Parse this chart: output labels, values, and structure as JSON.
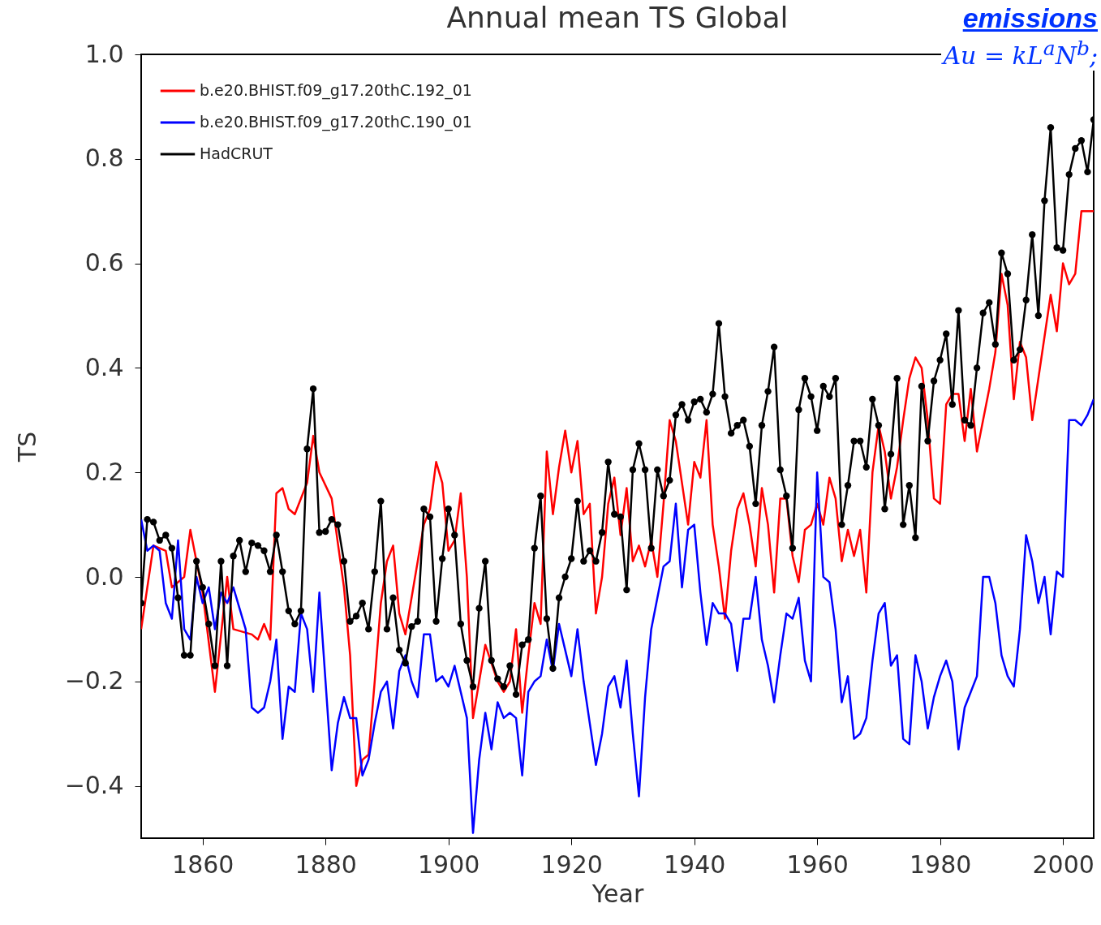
{
  "chart_data": {
    "type": "line",
    "title": "Annual mean TS Global",
    "xlabel": "Year",
    "ylabel": "TS",
    "annotations": [
      "emissions",
      "Au = kL$^{a}$N$^{b}$;"
    ],
    "xlim": [
      1850,
      2005
    ],
    "xticks": [
      1860,
      1880,
      1900,
      1920,
      1940,
      1960,
      1980,
      2000
    ],
    "ylim": [
      -0.5,
      1.0
    ],
    "yticks": [
      {
        "value": -0.4,
        "label": "−0.4"
      },
      {
        "value": -0.2,
        "label": "−0.2"
      },
      {
        "value": 0,
        "label": "0.0"
      },
      {
        "value": 0.2,
        "label": "0.2"
      },
      {
        "value": 0.4,
        "label": "0.4"
      },
      {
        "value": 0.6,
        "label": "0.6"
      },
      {
        "value": 0.8,
        "label": "0.8"
      },
      {
        "value": 1,
        "label": "1.0"
      }
    ],
    "grid": false,
    "legend": "top left",
    "series": [
      {
        "name": "b.e20.BHIST.f09_g17.20thC.192_01",
        "color": "#ff0000",
        "marker": "none",
        "x": [
          1850,
          1852,
          1854,
          1855,
          1857,
          1858,
          1860,
          1862,
          1864,
          1865,
          1868,
          1869,
          1870,
          1871,
          1872,
          1873,
          1874,
          1875,
          1877,
          1878,
          1879,
          1881,
          1883,
          1884,
          1885,
          1886,
          1887,
          1888,
          1889,
          1890,
          1891,
          1892,
          1893,
          1895,
          1896,
          1897,
          1898,
          1899,
          1900,
          1901,
          1902,
          1903,
          1904,
          1905,
          1906,
          1908,
          1909,
          1910,
          1911,
          1912,
          1913,
          1914,
          1915,
          1916,
          1917,
          1918,
          1919,
          1920,
          1921,
          1922,
          1923,
          1924,
          1925,
          1926,
          1927,
          1928,
          1929,
          1930,
          1931,
          1932,
          1933,
          1934,
          1935,
          1936,
          1937,
          1938,
          1939,
          1940,
          1941,
          1942,
          1943,
          1944,
          1945,
          1946,
          1947,
          1948,
          1949,
          1950,
          1951,
          1952,
          1953,
          1954,
          1955,
          1956,
          1957,
          1958,
          1959,
          1960,
          1961,
          1962,
          1963,
          1964,
          1965,
          1966,
          1967,
          1968,
          1969,
          1970,
          1971,
          1972,
          1973,
          1974,
          1975,
          1976,
          1977,
          1978,
          1979,
          1980,
          1981,
          1982,
          1983,
          1984,
          1985,
          1986,
          1987,
          1988,
          1989,
          1990,
          1991,
          1992,
          1993,
          1994,
          1995,
          1996,
          1997,
          1998,
          1999,
          2000,
          2001,
          2002,
          2003,
          2004,
          2005
        ],
        "values": [
          -0.1,
          0.06,
          0.05,
          -0.02,
          0.0,
          0.09,
          -0.03,
          -0.22,
          0.0,
          -0.1,
          -0.11,
          -0.12,
          -0.09,
          -0.12,
          0.16,
          0.17,
          0.13,
          0.12,
          0.18,
          0.27,
          0.2,
          0.15,
          -0.02,
          -0.15,
          -0.4,
          -0.35,
          -0.34,
          -0.2,
          -0.05,
          0.03,
          0.06,
          -0.07,
          -0.11,
          0.03,
          0.1,
          0.13,
          0.22,
          0.18,
          0.05,
          0.07,
          0.16,
          0.0,
          -0.27,
          -0.2,
          -0.13,
          -0.2,
          -0.22,
          -0.2,
          -0.1,
          -0.26,
          -0.15,
          -0.05,
          -0.09,
          0.24,
          0.12,
          0.21,
          0.28,
          0.2,
          0.26,
          0.12,
          0.14,
          -0.07,
          0.0,
          0.14,
          0.19,
          0.08,
          0.17,
          0.03,
          0.06,
          0.02,
          0.07,
          0.0,
          0.14,
          0.3,
          0.26,
          0.18,
          0.1,
          0.22,
          0.19,
          0.3,
          0.1,
          0.02,
          -0.08,
          0.05,
          0.13,
          0.16,
          0.1,
          0.02,
          0.17,
          0.1,
          -0.03,
          0.15,
          0.15,
          0.04,
          -0.01,
          0.09,
          0.1,
          0.14,
          0.1,
          0.19,
          0.15,
          0.03,
          0.09,
          0.04,
          0.09,
          -0.03,
          0.2,
          0.29,
          0.24,
          0.15,
          0.21,
          0.3,
          0.38,
          0.42,
          0.4,
          0.3,
          0.15,
          0.14,
          0.33,
          0.35,
          0.35,
          0.26,
          0.36,
          0.24,
          0.3,
          0.36,
          0.43,
          0.58,
          0.52,
          0.34,
          0.45,
          0.42,
          0.3,
          0.38,
          0.46,
          0.54,
          0.47,
          0.6,
          0.56,
          0.58,
          0.7,
          0.7,
          0.7
        ]
      },
      {
        "name": "b.e20.BHIST.f09_g17.20thC.190_01",
        "color": "#0000ff",
        "marker": "none",
        "x": [
          1850,
          1851,
          1852,
          1853,
          1854,
          1855,
          1856,
          1857,
          1858,
          1859,
          1860,
          1861,
          1862,
          1863,
          1864,
          1865,
          1866,
          1867,
          1868,
          1869,
          1870,
          1871,
          1872,
          1873,
          1874,
          1875,
          1876,
          1877,
          1878,
          1879,
          1880,
          1881,
          1882,
          1883,
          1884,
          1885,
          1886,
          1887,
          1888,
          1889,
          1890,
          1891,
          1892,
          1893,
          1894,
          1895,
          1896,
          1897,
          1898,
          1899,
          1900,
          1901,
          1902,
          1903,
          1904,
          1905,
          1906,
          1907,
          1908,
          1909,
          1910,
          1911,
          1912,
          1913,
          1914,
          1915,
          1916,
          1917,
          1918,
          1919,
          1920,
          1921,
          1922,
          1923,
          1924,
          1925,
          1926,
          1927,
          1928,
          1929,
          1930,
          1931,
          1932,
          1933,
          1934,
          1935,
          1936,
          1937,
          1938,
          1939,
          1940,
          1941,
          1942,
          1943,
          1944,
          1945,
          1946,
          1947,
          1948,
          1949,
          1950,
          1951,
          1952,
          1953,
          1954,
          1955,
          1956,
          1957,
          1958,
          1959,
          1960,
          1961,
          1962,
          1963,
          1964,
          1965,
          1966,
          1967,
          1968,
          1969,
          1970,
          1971,
          1972,
          1973,
          1974,
          1975,
          1976,
          1977,
          1978,
          1979,
          1980,
          1981,
          1982,
          1983,
          1984,
          1985,
          1986,
          1987,
          1988,
          1989,
          1990,
          1991,
          1992,
          1993,
          1994,
          1995,
          1996,
          1997,
          1998,
          1999,
          2000,
          2001,
          2002,
          2003,
          2004,
          2005
        ],
        "values": [
          0.11,
          0.05,
          0.06,
          0.05,
          -0.05,
          -0.08,
          0.07,
          -0.1,
          -0.12,
          0.0,
          -0.05,
          -0.02,
          -0.1,
          -0.03,
          -0.05,
          -0.02,
          -0.06,
          -0.1,
          -0.25,
          -0.26,
          -0.25,
          -0.2,
          -0.12,
          -0.31,
          -0.21,
          -0.22,
          -0.07,
          -0.1,
          -0.22,
          -0.03,
          -0.2,
          -0.37,
          -0.28,
          -0.23,
          -0.27,
          -0.27,
          -0.38,
          -0.35,
          -0.28,
          -0.22,
          -0.2,
          -0.29,
          -0.18,
          -0.15,
          -0.2,
          -0.23,
          -0.11,
          -0.11,
          -0.2,
          -0.19,
          -0.21,
          -0.17,
          -0.22,
          -0.27,
          -0.49,
          -0.35,
          -0.26,
          -0.33,
          -0.24,
          -0.27,
          -0.26,
          -0.27,
          -0.38,
          -0.22,
          -0.2,
          -0.19,
          -0.12,
          -0.18,
          -0.09,
          -0.14,
          -0.19,
          -0.1,
          -0.2,
          -0.28,
          -0.36,
          -0.3,
          -0.21,
          -0.19,
          -0.25,
          -0.16,
          -0.3,
          -0.42,
          -0.23,
          -0.1,
          -0.04,
          0.02,
          0.03,
          0.14,
          -0.02,
          0.09,
          0.1,
          -0.03,
          -0.13,
          -0.05,
          -0.07,
          -0.07,
          -0.09,
          -0.18,
          -0.08,
          -0.08,
          0.0,
          -0.12,
          -0.17,
          -0.24,
          -0.15,
          -0.07,
          -0.08,
          -0.04,
          -0.16,
          -0.2,
          0.2,
          0.0,
          -0.01,
          -0.1,
          -0.24,
          -0.19,
          -0.31,
          -0.3,
          -0.27,
          -0.16,
          -0.07,
          -0.05,
          -0.17,
          -0.15,
          -0.31,
          -0.32,
          -0.15,
          -0.2,
          -0.29,
          -0.23,
          -0.19,
          -0.16,
          -0.2,
          -0.33,
          -0.25,
          -0.22,
          -0.19,
          0.0,
          0.0,
          -0.05,
          -0.15,
          -0.19,
          -0.21,
          -0.1,
          0.08,
          0.03,
          -0.05,
          0.0,
          -0.11,
          0.01,
          0.0,
          0.3,
          0.3,
          0.29,
          0.31,
          0.34
        ]
      },
      {
        "name": "HadCRUT",
        "color": "#000000",
        "marker": "circle",
        "x": [
          1850,
          1851,
          1852,
          1853,
          1854,
          1855,
          1856,
          1857,
          1858,
          1859,
          1860,
          1861,
          1862,
          1863,
          1864,
          1865,
          1866,
          1867,
          1868,
          1869,
          1870,
          1871,
          1872,
          1873,
          1874,
          1875,
          1876,
          1877,
          1878,
          1879,
          1880,
          1881,
          1882,
          1883,
          1884,
          1885,
          1886,
          1887,
          1888,
          1889,
          1890,
          1891,
          1892,
          1893,
          1894,
          1895,
          1896,
          1897,
          1898,
          1899,
          1900,
          1901,
          1902,
          1903,
          1904,
          1905,
          1906,
          1907,
          1908,
          1909,
          1910,
          1911,
          1912,
          1913,
          1914,
          1915,
          1916,
          1917,
          1918,
          1919,
          1920,
          1921,
          1922,
          1923,
          1924,
          1925,
          1926,
          1927,
          1928,
          1929,
          1930,
          1931,
          1932,
          1933,
          1934,
          1935,
          1936,
          1937,
          1938,
          1939,
          1940,
          1941,
          1942,
          1943,
          1944,
          1945,
          1946,
          1947,
          1948,
          1949,
          1950,
          1951,
          1952,
          1953,
          1954,
          1955,
          1956,
          1957,
          1958,
          1959,
          1960,
          1961,
          1962,
          1963,
          1964,
          1965,
          1966,
          1967,
          1968,
          1969,
          1970,
          1971,
          1972,
          1973,
          1974,
          1975,
          1976,
          1977,
          1978,
          1979,
          1980,
          1981,
          1982,
          1983,
          1984,
          1985,
          1986,
          1987,
          1988,
          1989,
          1990,
          1991,
          1992,
          1993,
          1994,
          1995,
          1996,
          1997,
          1998,
          1999,
          2000,
          2001,
          2002,
          2003,
          2004,
          2005
        ],
        "values": [
          -0.05,
          0.11,
          0.105,
          0.07,
          0.08,
          0.055,
          -0.04,
          -0.15,
          -0.15,
          0.03,
          -0.02,
          -0.09,
          -0.17,
          0.03,
          -0.17,
          0.04,
          0.07,
          0.01,
          0.065,
          0.06,
          0.05,
          0.01,
          0.08,
          0.01,
          -0.065,
          -0.09,
          -0.065,
          0.245,
          0.36,
          0.085,
          0.087,
          0.11,
          0.1,
          0.03,
          -0.085,
          -0.075,
          -0.05,
          -0.1,
          0.01,
          0.145,
          -0.1,
          -0.04,
          -0.14,
          -0.165,
          -0.095,
          -0.085,
          0.13,
          0.115,
          -0.085,
          0.035,
          0.13,
          0.08,
          -0.09,
          -0.16,
          -0.21,
          -0.06,
          0.03,
          -0.16,
          -0.195,
          -0.21,
          -0.17,
          -0.225,
          -0.13,
          -0.12,
          0.055,
          0.155,
          -0.08,
          -0.175,
          -0.04,
          0.0,
          0.035,
          0.145,
          0.03,
          0.05,
          0.03,
          0.085,
          0.22,
          0.12,
          0.115,
          -0.025,
          0.205,
          0.255,
          0.205,
          0.055,
          0.205,
          0.155,
          0.185,
          0.31,
          0.33,
          0.3,
          0.335,
          0.34,
          0.315,
          0.35,
          0.485,
          0.345,
          0.275,
          0.29,
          0.3,
          0.25,
          0.14,
          0.29,
          0.355,
          0.44,
          0.205,
          0.155,
          0.055,
          0.32,
          0.38,
          0.345,
          0.28,
          0.365,
          0.345,
          0.38,
          0.1,
          0.175,
          0.26,
          0.26,
          0.21,
          0.34,
          0.29,
          0.13,
          0.235,
          0.38,
          0.1,
          0.175,
          0.075,
          0.365,
          0.26,
          0.375,
          0.415,
          0.465,
          0.33,
          0.51,
          0.3,
          0.29,
          0.4,
          0.505,
          0.525,
          0.445,
          0.62,
          0.58,
          0.415,
          0.435,
          0.53,
          0.655,
          0.5,
          0.72,
          0.86,
          0.63,
          0.625,
          0.77,
          0.82,
          0.835,
          0.775,
          0.875
        ]
      }
    ]
  }
}
